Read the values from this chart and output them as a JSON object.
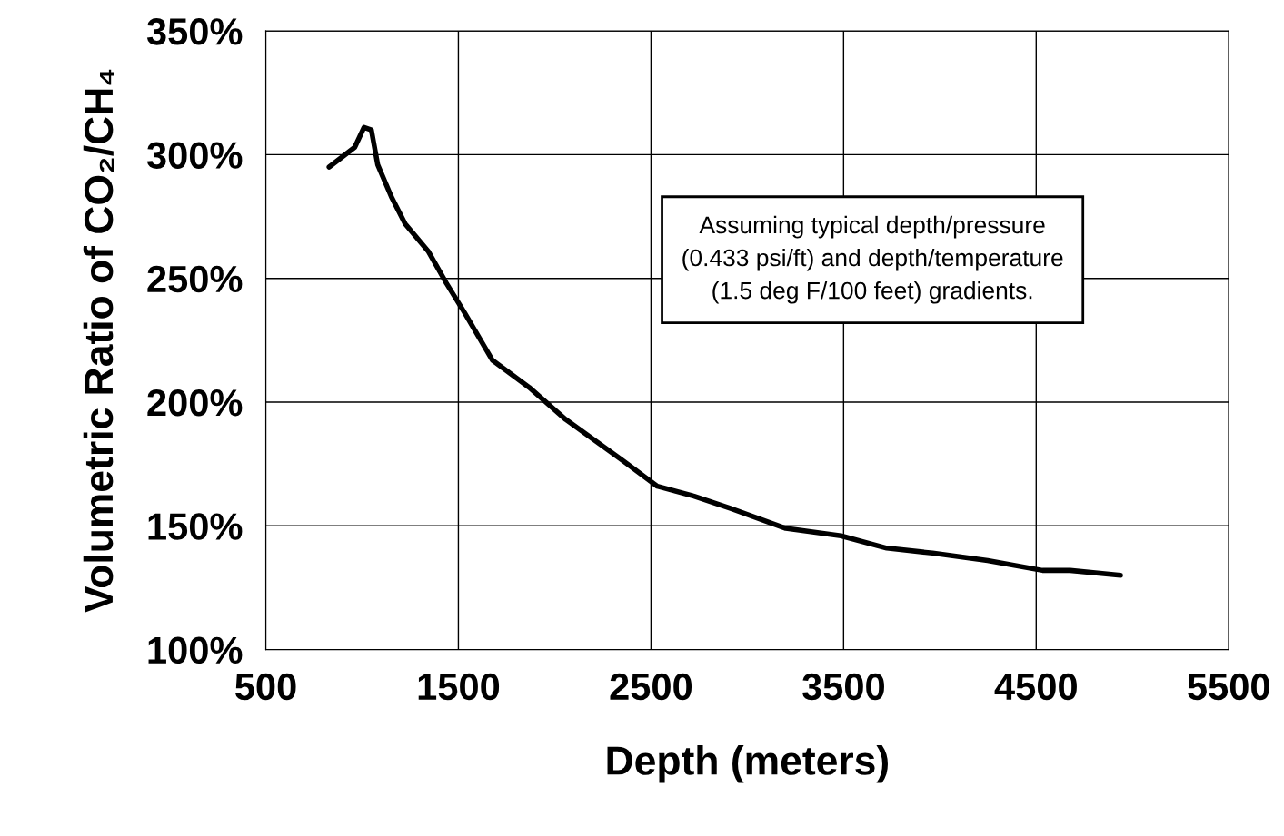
{
  "chart_data": {
    "type": "line",
    "xlabel": "Depth (meters)",
    "ylabel": "Volumetric Ratio of CO₂/CH₄",
    "annotations": [
      "Assuming typical depth/pressure\n(0.433 psi/ft) and depth/temperature\n(1.5 deg F/100 feet) gradients."
    ],
    "series": [
      {
        "color": "#000000",
        "x": [
          829,
          962,
          1010,
          1048,
          1081,
          1152,
          1224,
          1343,
          1438,
          1533,
          1676,
          1867,
          2057,
          2343,
          2533,
          2724,
          2914,
          3200,
          3486,
          3724,
          3962,
          4248,
          4533,
          4676,
          4938
        ],
        "values": [
          295,
          303,
          311,
          310,
          296,
          283,
          272,
          261,
          248,
          236,
          217,
          206,
          193,
          177,
          166,
          162,
          157,
          149,
          146,
          141,
          139,
          136,
          132,
          132,
          130
        ]
      }
    ],
    "xlim": [
      500,
      5500
    ],
    "xticks": [
      500,
      1500,
      2500,
      3500,
      4500,
      5500
    ],
    "ylim": [
      100,
      350
    ],
    "yticks": [
      {
        "value": 100,
        "label": "100%"
      },
      {
        "value": 150,
        "label": "150%"
      },
      {
        "value": 200,
        "label": "200%"
      },
      {
        "value": 250,
        "label": "250%"
      },
      {
        "value": 300,
        "label": "300%"
      },
      {
        "value": 350,
        "label": "350%"
      }
    ],
    "grid": true,
    "legend": false,
    "marker": "none",
    "line_style": "solid"
  }
}
